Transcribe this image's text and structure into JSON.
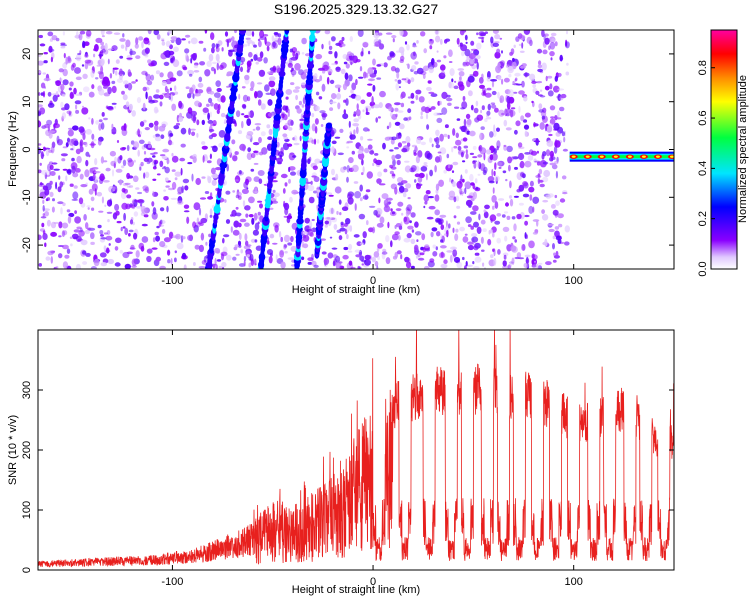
{
  "title": "S196.2025.329.13.32.G27",
  "chart_data": [
    {
      "type": "heatmap",
      "title": "S196.2025.329.13.32.G27",
      "xlabel": "Height of straight line (km)",
      "ylabel": "Frequency (Hz)",
      "xlim": [
        -167,
        150
      ],
      "ylim": [
        -25,
        25
      ],
      "xticks": [
        -100,
        0,
        100
      ],
      "yticks": [
        -20,
        -10,
        0,
        10,
        20
      ],
      "colorbar": {
        "label": "Normalized spectral amplitude",
        "range": [
          0,
          0.95
        ],
        "ticks": [
          "0.0",
          "0.2",
          "0.4",
          "0.6",
          "0.8"
        ],
        "ticks_values": [
          0.0,
          0.2,
          0.4,
          0.6,
          0.8
        ],
        "colormap": [
          "#ffffff",
          "#8a00ff",
          "#0000ff",
          "#00e5ff",
          "#00ff40",
          "#ffff00",
          "#ff8c00",
          "#ff0000",
          "#ff00a0"
        ]
      },
      "features": [
        {
          "name": "diagonal streak 1",
          "x_start": -82,
          "y_start": -25,
          "x_end": -65,
          "y_end": 25
        },
        {
          "name": "diagonal streak 2",
          "x_start": -56,
          "y_start": -25,
          "x_end": -43,
          "y_end": 25
        },
        {
          "name": "diagonal streak 3",
          "x_start": -38,
          "y_start": -25,
          "x_end": -30,
          "y_end": 25
        },
        {
          "name": "diagonal streak 4",
          "x_start": -28,
          "y_start": -22,
          "x_end": -22,
          "y_end": 5
        },
        {
          "name": "noise cutoff",
          "x": 97
        },
        {
          "name": "carrier line",
          "x_start": 98,
          "x_end": 150,
          "frequency": -1.5
        }
      ]
    },
    {
      "type": "line",
      "xlabel": "Height of straight line (km)",
      "ylabel": "SNR (10 * v/v)",
      "xlim": [
        -167,
        150
      ],
      "ylim": [
        0,
        400
      ],
      "xticks": [
        -100,
        0,
        100
      ],
      "yticks": [
        0,
        100,
        200,
        300
      ],
      "series": [
        {
          "name": "SNR",
          "color": "#e8201e",
          "envelope": [
            {
              "x": -167,
              "y": 15
            },
            {
              "x": -140,
              "y": 20
            },
            {
              "x": -110,
              "y": 25
            },
            {
              "x": -90,
              "y": 35
            },
            {
              "x": -75,
              "y": 55
            },
            {
              "x": -60,
              "y": 80
            },
            {
              "x": -50,
              "y": 120
            },
            {
              "x": -40,
              "y": 110
            },
            {
              "x": -30,
              "y": 130
            },
            {
              "x": -20,
              "y": 160
            },
            {
              "x": -10,
              "y": 220
            },
            {
              "x": 0,
              "y": 280
            },
            {
              "x": 10,
              "y": 310
            },
            {
              "x": 20,
              "y": 330
            },
            {
              "x": 30,
              "y": 340
            },
            {
              "x": 40,
              "y": 340
            },
            {
              "x": 50,
              "y": 345
            },
            {
              "x": 60,
              "y": 340
            },
            {
              "x": 70,
              "y": 335
            },
            {
              "x": 80,
              "y": 330
            },
            {
              "x": 90,
              "y": 310
            },
            {
              "x": 100,
              "y": 280
            },
            {
              "x": 110,
              "y": 280
            },
            {
              "x": 120,
              "y": 310
            },
            {
              "x": 130,
              "y": 300
            },
            {
              "x": 140,
              "y": 250
            },
            {
              "x": 150,
              "y": 240
            }
          ],
          "dropouts_x": [
            3,
            16,
            28,
            39,
            47,
            57,
            65,
            73,
            82,
            91,
            100,
            110,
            118,
            128,
            136,
            145
          ]
        }
      ]
    }
  ]
}
